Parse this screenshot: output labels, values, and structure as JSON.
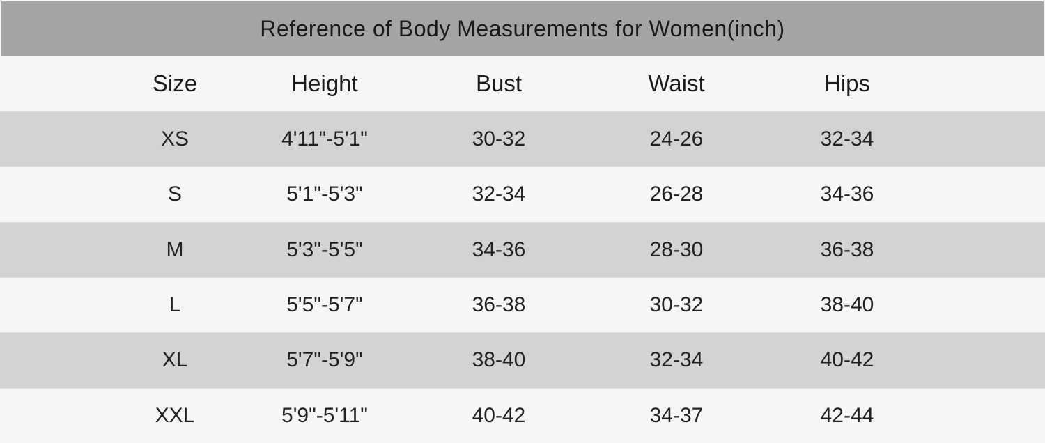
{
  "title": "Reference of Body Measurements for Women(inch)",
  "colors": {
    "title_bar_bg": "#a4a4a4",
    "striped_row_bg": "#d3d3d3",
    "plain_row_bg": "#f6f6f6",
    "text": "#1e1e1e"
  },
  "chart_data": {
    "type": "table",
    "title": "Reference of Body Measurements for Women(inch)",
    "unit": "inch",
    "columns": [
      "Size",
      "Height",
      "Bust",
      "Waist",
      "Hips"
    ],
    "rows": [
      [
        "XS",
        "4'11\"-5'1\"",
        "30-32",
        "24-26",
        "32-34"
      ],
      [
        "S",
        "5'1\"-5'3\"",
        "32-34",
        "26-28",
        "34-36"
      ],
      [
        "M",
        "5'3\"-5'5\"",
        "34-36",
        "28-30",
        "36-38"
      ],
      [
        "L",
        "5'5\"-5'7\"",
        "36-38",
        "30-32",
        "38-40"
      ],
      [
        "XL",
        "5'7\"-5'9\"",
        "38-40",
        "32-34",
        "40-42"
      ],
      [
        "XXL",
        "5'9\"-5'11\"",
        "40-42",
        "34-37",
        "42-44"
      ]
    ],
    "layout": {
      "striped_row_indices": [
        0,
        2,
        4
      ],
      "header_background": "#f6f6f6",
      "stripe_background": "#d3d3d3"
    }
  }
}
